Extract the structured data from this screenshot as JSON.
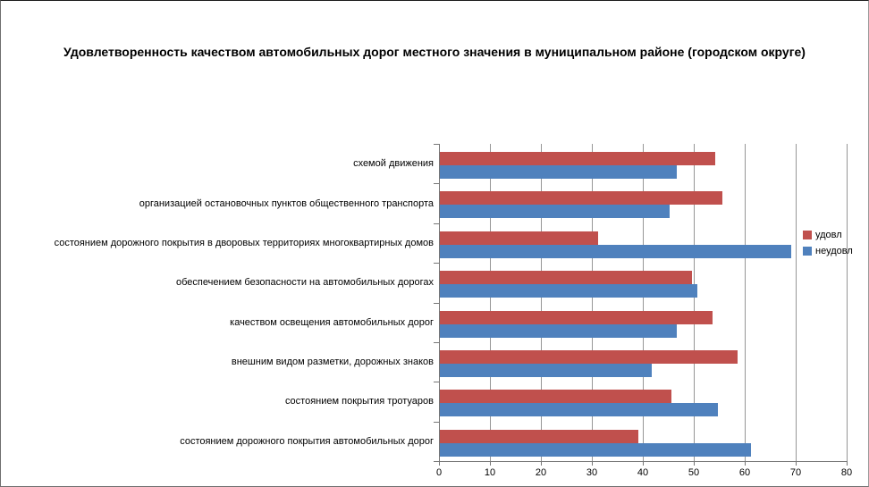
{
  "chart_data": {
    "type": "bar",
    "orientation": "horizontal",
    "title": "Удовлетворенность качеством автомобильных дорог местного значения в муниципальном районе (городском округе)",
    "categories": [
      "схемой движения",
      "организацией остановочных пунктов общественного транспорта",
      "состоянием дорожного покрытия в дворовых территориях многоквартирных домов",
      "обеспечением безопасности на автомобильных дорогах",
      "качеством освещения автомобильных дорог",
      "внешним видом разметки, дорожных знаков",
      "состоянием покрытия тротуаров",
      "состоянием дорожного покрытия автомобильных дорог"
    ],
    "series": [
      {
        "name": "удовл",
        "color": "#C0504D",
        "values": [
          54,
          55.5,
          31,
          49.5,
          53.5,
          58.5,
          45.5,
          39
        ]
      },
      {
        "name": "неудовл",
        "color": "#4F81BD",
        "values": [
          46.5,
          45,
          69,
          50.5,
          46.5,
          41.5,
          54.5,
          61
        ]
      }
    ],
    "x_axis": {
      "min": 0,
      "max": 80,
      "tick_step": 10,
      "tick_labels": [
        "0",
        "10",
        "20",
        "30",
        "40",
        "50",
        "60",
        "70",
        "80"
      ]
    },
    "grid": true,
    "legend_position": "right-middle",
    "plot_background": "#ffffff"
  }
}
